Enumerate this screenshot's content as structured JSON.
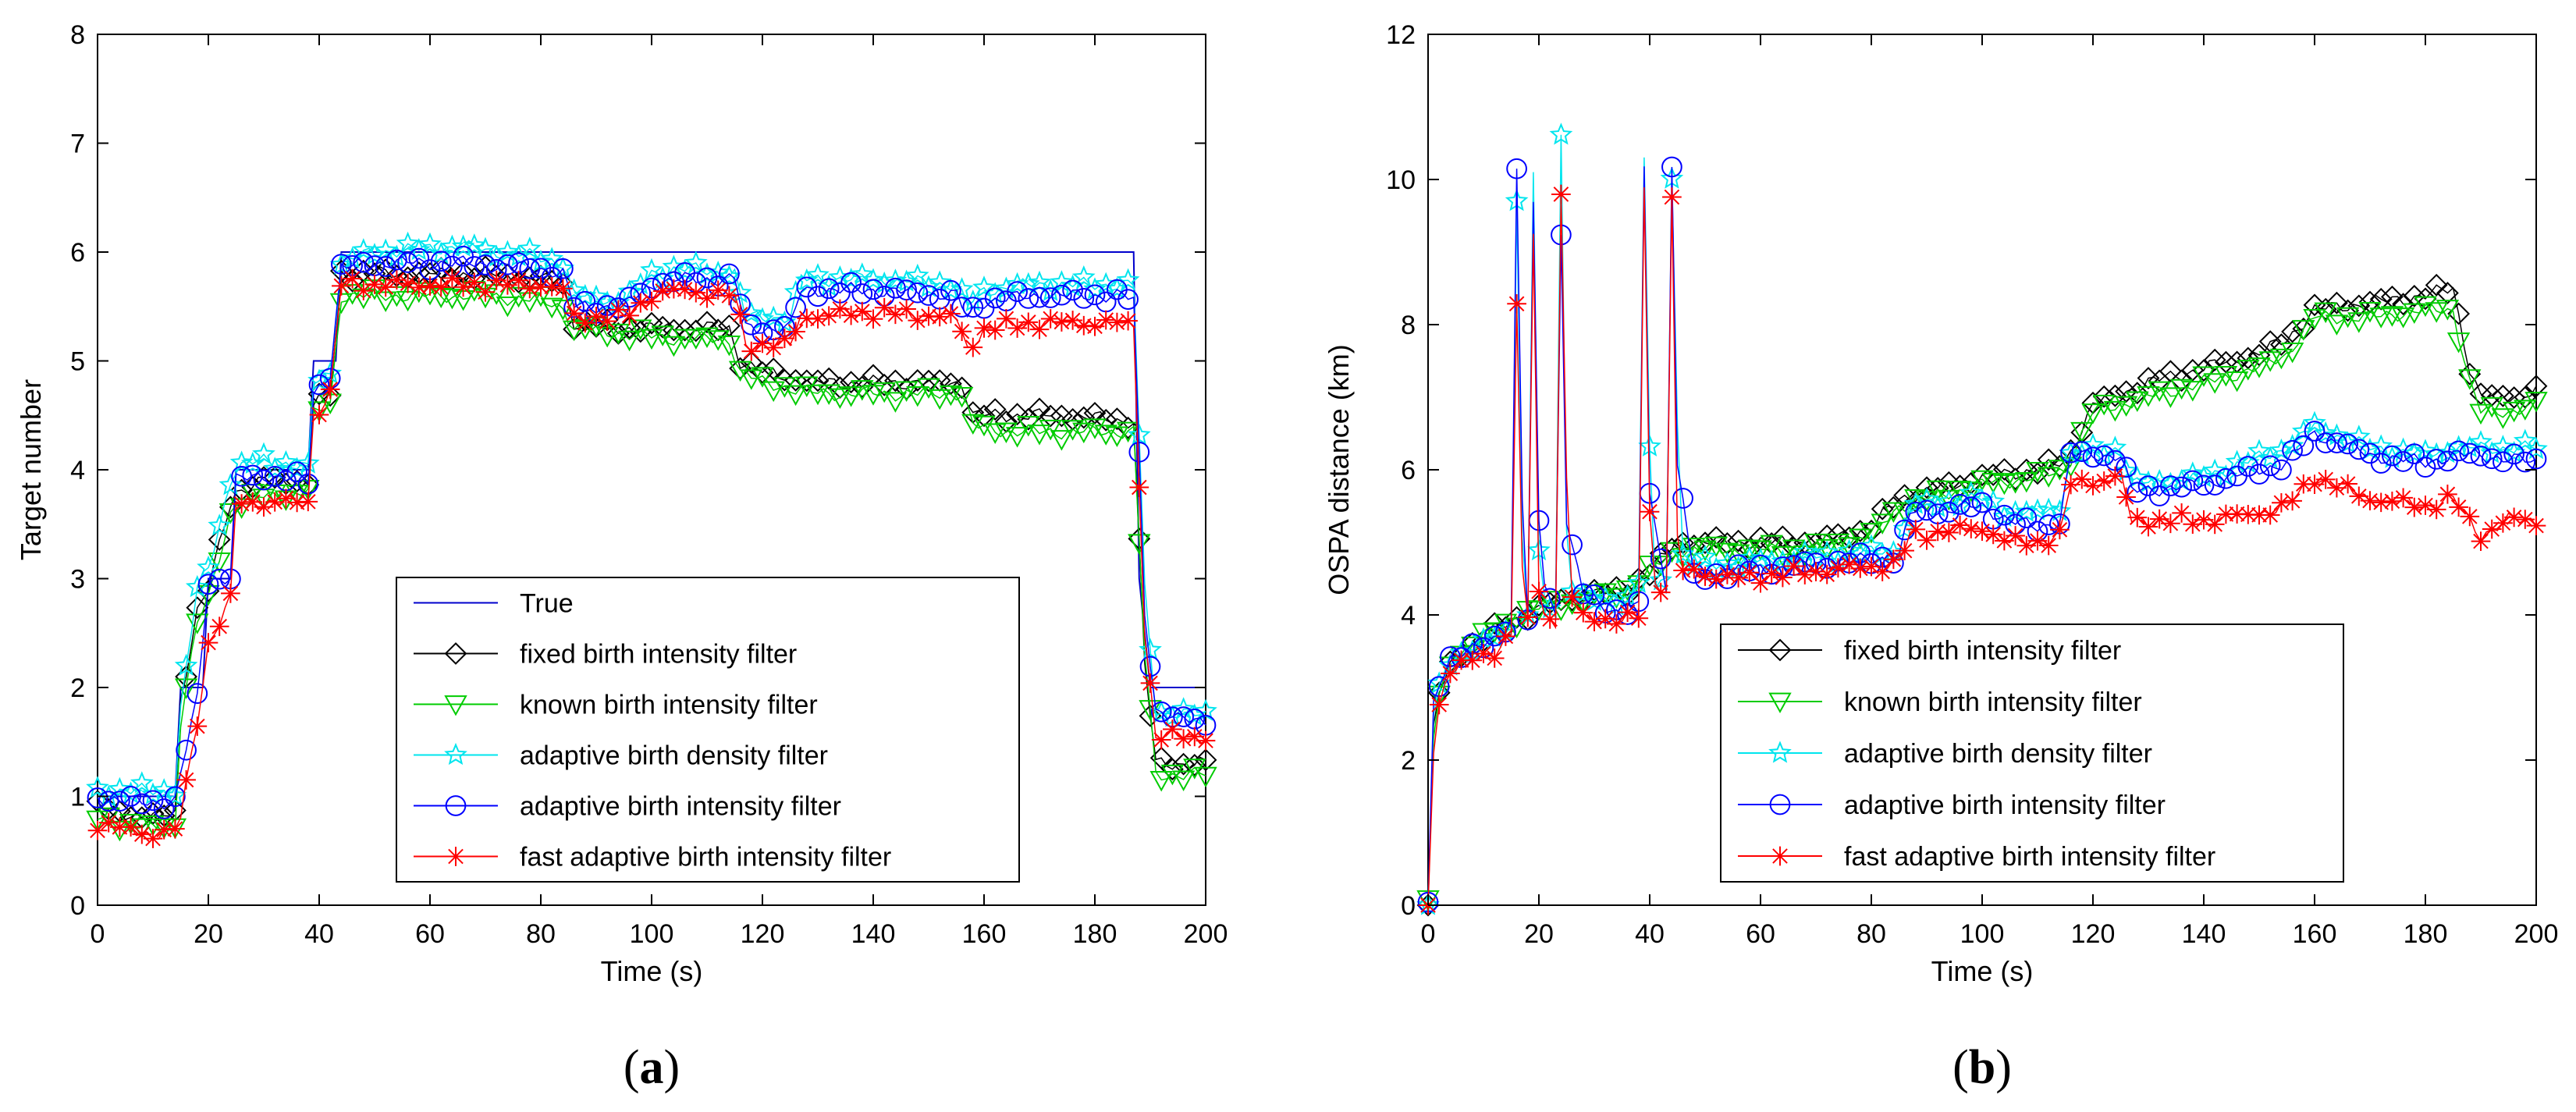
{
  "figures": [
    {
      "caption_letter": "a",
      "caption_open": "(",
      "caption_close": ")"
    },
    {
      "caption_letter": "b",
      "caption_open": "(",
      "caption_close": ")"
    }
  ],
  "chart_data": [
    {
      "id": "a",
      "type": "line",
      "title": "",
      "xlabel": "Time (s)",
      "ylabel": "Target number",
      "xlim": [
        0,
        200
      ],
      "ylim": [
        0,
        8
      ],
      "xticks": [
        0,
        20,
        40,
        60,
        80,
        100,
        120,
        140,
        160,
        180,
        200
      ],
      "yticks": [
        0,
        1,
        2,
        3,
        4,
        5,
        6,
        7,
        8
      ],
      "grid": false,
      "legend_position": "center-lower",
      "series": [
        {
          "name": "True",
          "color": "#0000cc",
          "marker": "none",
          "x": [
            0,
            14,
            15,
            19,
            20,
            24,
            25,
            38,
            39,
            43,
            44,
            187,
            188,
            190,
            200
          ],
          "y": [
            1,
            1,
            2,
            2,
            3,
            3,
            4,
            4,
            5,
            5,
            6,
            6,
            3,
            2,
            2
          ]
        },
        {
          "name": "fixed birth intensity filter",
          "color": "#000000",
          "marker": "diamond",
          "x": [
            0,
            5,
            10,
            14,
            15,
            18,
            20,
            24,
            25,
            30,
            38,
            39,
            42,
            44,
            50,
            60,
            70,
            80,
            84,
            86,
            95,
            105,
            110,
            114,
            116,
            120,
            125,
            130,
            140,
            150,
            156,
            158,
            165,
            175,
            185,
            187,
            189,
            191,
            195,
            200
          ],
          "y": [
            0.9,
            0.85,
            0.8,
            0.85,
            1.9,
            2.7,
            2.9,
            3.7,
            3.8,
            3.9,
            3.9,
            4.6,
            4.7,
            5.8,
            5.8,
            5.8,
            5.8,
            5.75,
            5.7,
            5.35,
            5.3,
            5.3,
            5.3,
            5.3,
            5.0,
            4.9,
            4.85,
            4.8,
            4.8,
            4.8,
            4.8,
            4.5,
            4.5,
            4.5,
            4.45,
            4.45,
            2.2,
            1.3,
            1.3,
            1.3
          ]
        },
        {
          "name": "known birth intensity filter",
          "color": "#00cc00",
          "marker": "triangle-down",
          "x": [
            0,
            5,
            10,
            14,
            15,
            18,
            20,
            24,
            25,
            30,
            38,
            39,
            42,
            44,
            50,
            60,
            70,
            80,
            84,
            86,
            95,
            105,
            110,
            114,
            116,
            120,
            125,
            130,
            140,
            150,
            156,
            158,
            165,
            175,
            185,
            187,
            189,
            191,
            195,
            200
          ],
          "y": [
            0.8,
            0.75,
            0.7,
            0.75,
            1.7,
            2.6,
            2.8,
            3.6,
            3.7,
            3.75,
            3.8,
            4.5,
            4.6,
            5.6,
            5.6,
            5.6,
            5.6,
            5.55,
            5.5,
            5.3,
            5.25,
            5.2,
            5.2,
            5.2,
            4.9,
            4.8,
            4.75,
            4.7,
            4.7,
            4.7,
            4.7,
            4.4,
            4.35,
            4.35,
            4.35,
            4.35,
            2.3,
            1.2,
            1.2,
            1.2
          ]
        },
        {
          "name": "adaptive birth density filter",
          "color": "#00e5ee",
          "marker": "star",
          "x": [
            0,
            5,
            10,
            14,
            15,
            18,
            20,
            24,
            25,
            30,
            38,
            39,
            42,
            44,
            50,
            65,
            80,
            84,
            86,
            95,
            100,
            105,
            115,
            117,
            125,
            127,
            140,
            155,
            157,
            160,
            170,
            185,
            187,
            189,
            191,
            195,
            200
          ],
          "y": [
            1.05,
            1.05,
            1.05,
            1.05,
            1.8,
            2.9,
            3.1,
            3.9,
            4.0,
            4.1,
            4.0,
            4.8,
            4.9,
            5.9,
            6.0,
            6.05,
            5.95,
            5.9,
            5.6,
            5.55,
            5.8,
            5.85,
            5.8,
            5.4,
            5.4,
            5.75,
            5.75,
            5.7,
            5.5,
            5.65,
            5.7,
            5.7,
            5.7,
            2.9,
            1.8,
            1.75,
            1.75
          ]
        },
        {
          "name": "adaptive birth intensity filter",
          "color": "#0000ff",
          "marker": "circle",
          "x": [
            0,
            5,
            10,
            14,
            15,
            18,
            20,
            24,
            25,
            30,
            38,
            39,
            42,
            44,
            50,
            65,
            80,
            84,
            86,
            95,
            100,
            105,
            115,
            117,
            125,
            127,
            140,
            155,
            157,
            160,
            170,
            185,
            187,
            189,
            191,
            195,
            200
          ],
          "y": [
            1.0,
            0.95,
            0.95,
            0.95,
            1.2,
            1.9,
            3.0,
            3.0,
            3.9,
            3.95,
            3.9,
            4.7,
            4.9,
            5.85,
            5.9,
            5.9,
            5.85,
            5.8,
            5.5,
            5.5,
            5.7,
            5.75,
            5.75,
            5.3,
            5.3,
            5.65,
            5.65,
            5.6,
            5.4,
            5.55,
            5.6,
            5.6,
            5.55,
            2.7,
            1.8,
            1.7,
            1.7
          ]
        },
        {
          "name": "fast adaptive birth intensity filter",
          "color": "#ff0000",
          "marker": "asterisk",
          "x": [
            0,
            5,
            10,
            14,
            15,
            18,
            20,
            24,
            25,
            30,
            38,
            39,
            42,
            44,
            50,
            65,
            80,
            84,
            86,
            95,
            100,
            105,
            115,
            117,
            125,
            127,
            140,
            155,
            157,
            160,
            170,
            185,
            187,
            189,
            191,
            195,
            200
          ],
          "y": [
            0.75,
            0.7,
            0.65,
            0.7,
            0.8,
            1.7,
            2.4,
            2.8,
            3.7,
            3.7,
            3.7,
            4.5,
            4.7,
            5.7,
            5.7,
            5.7,
            5.7,
            5.65,
            5.4,
            5.4,
            5.6,
            5.65,
            5.6,
            5.15,
            5.15,
            5.4,
            5.45,
            5.4,
            5.1,
            5.3,
            5.35,
            5.35,
            5.3,
            2.5,
            1.55,
            1.55,
            1.55
          ]
        }
      ]
    },
    {
      "id": "b",
      "type": "line",
      "title": "",
      "xlabel": "Time (s)",
      "ylabel": "OSPA distance (km)",
      "xlim": [
        0,
        200
      ],
      "ylim": [
        0,
        12
      ],
      "xticks": [
        0,
        20,
        40,
        60,
        80,
        100,
        120,
        140,
        160,
        180,
        200
      ],
      "yticks": [
        0,
        2,
        4,
        6,
        8,
        10,
        12
      ],
      "grid": false,
      "legend_position": "lower-right",
      "series": [
        {
          "name": "fixed birth intensity filter",
          "color": "#000000",
          "marker": "diamond",
          "x": [
            0,
            1,
            2,
            4,
            6,
            10,
            15,
            20,
            25,
            30,
            35,
            40,
            45,
            50,
            60,
            70,
            80,
            85,
            90,
            100,
            110,
            115,
            120,
            130,
            140,
            150,
            155,
            160,
            170,
            180,
            185,
            188,
            190,
            195,
            200
          ],
          "y": [
            0,
            2.4,
            2.9,
            3.3,
            3.5,
            3.7,
            3.9,
            4.1,
            4.2,
            4.3,
            4.3,
            4.6,
            5.0,
            5.0,
            5.0,
            5.0,
            5.2,
            5.6,
            5.7,
            5.9,
            6.0,
            6.1,
            6.9,
            7.2,
            7.4,
            7.6,
            7.8,
            8.2,
            8.3,
            8.4,
            8.5,
            7.4,
            7.0,
            7.0,
            7.1
          ]
        },
        {
          "name": "known birth intensity filter",
          "color": "#00cc00",
          "marker": "triangle-down",
          "x": [
            0,
            1,
            2,
            4,
            6,
            10,
            15,
            20,
            25,
            30,
            35,
            40,
            45,
            50,
            60,
            70,
            80,
            85,
            90,
            100,
            110,
            115,
            120,
            130,
            140,
            150,
            155,
            160,
            170,
            180,
            185,
            188,
            190,
            195,
            200
          ],
          "y": [
            0,
            2.3,
            2.9,
            3.3,
            3.5,
            3.7,
            3.9,
            4.1,
            4.15,
            4.25,
            4.3,
            4.6,
            4.9,
            4.9,
            4.9,
            4.9,
            5.1,
            5.5,
            5.6,
            5.8,
            5.9,
            6.0,
            6.8,
            7.0,
            7.2,
            7.4,
            7.6,
            8.1,
            8.1,
            8.2,
            8.2,
            7.2,
            6.8,
            6.8,
            6.9
          ]
        },
        {
          "name": "adaptive birth density filter",
          "color": "#00e5ee",
          "marker": "star",
          "x": [
            0,
            1,
            2,
            4,
            8,
            12,
            15,
            16,
            17,
            18,
            19,
            20,
            21,
            23,
            24,
            25,
            26,
            28,
            35,
            38,
            39,
            40,
            41,
            43,
            44,
            45,
            46,
            48,
            55,
            70,
            85,
            87,
            100,
            105,
            110,
            114,
            116,
            125,
            127,
            140,
            155,
            160,
            170,
            180,
            185,
            190,
            200
          ],
          "y": [
            0,
            2.6,
            3.0,
            3.4,
            3.5,
            3.7,
            3.9,
            9.7,
            5.0,
            4.0,
            10.1,
            4.8,
            4.2,
            4.1,
            10.6,
            5.2,
            4.4,
            4.2,
            4.2,
            4.4,
            10.2,
            6.3,
            4.4,
            4.5,
            10.1,
            6.7,
            4.8,
            4.7,
            4.7,
            4.8,
            4.9,
            5.5,
            5.6,
            5.4,
            5.4,
            5.5,
            6.2,
            6.3,
            5.8,
            5.9,
            6.3,
            6.6,
            6.3,
            6.2,
            6.3,
            6.3,
            6.3
          ]
        },
        {
          "name": "adaptive birth intensity filter",
          "color": "#0000ff",
          "marker": "circle",
          "x": [
            0,
            1,
            2,
            4,
            8,
            12,
            15,
            16,
            17,
            18,
            19,
            20,
            21,
            23,
            24,
            25,
            26,
            28,
            35,
            38,
            39,
            40,
            41,
            43,
            44,
            45,
            46,
            48,
            55,
            70,
            85,
            87,
            100,
            105,
            110,
            114,
            116,
            125,
            127,
            140,
            155,
            160,
            170,
            180,
            185,
            190,
            200
          ],
          "y": [
            0,
            2.8,
            3.1,
            3.4,
            3.5,
            3.7,
            3.9,
            10.1,
            5.6,
            3.9,
            9.6,
            5.3,
            4.5,
            4.0,
            9.3,
            5.3,
            4.9,
            4.3,
            4.0,
            4.1,
            10.2,
            5.7,
            5.2,
            4.4,
            10.2,
            6.0,
            5.6,
            4.5,
            4.6,
            4.7,
            4.8,
            5.4,
            5.5,
            5.3,
            5.2,
            5.3,
            6.2,
            6.2,
            5.7,
            5.8,
            6.1,
            6.5,
            6.2,
            6.1,
            6.2,
            6.2,
            6.1
          ]
        },
        {
          "name": "fast adaptive birth intensity filter",
          "color": "#ff0000",
          "marker": "asterisk",
          "x": [
            0,
            1,
            2,
            4,
            8,
            12,
            15,
            16,
            17,
            18,
            19,
            20,
            21,
            23,
            24,
            25,
            26,
            28,
            35,
            38,
            39,
            40,
            41,
            43,
            44,
            45,
            46,
            48,
            55,
            70,
            85,
            87,
            100,
            105,
            110,
            114,
            116,
            125,
            127,
            140,
            150,
            155,
            160,
            170,
            180,
            185,
            190,
            195,
            200
          ],
          "y": [
            0,
            2.2,
            2.8,
            3.2,
            3.4,
            3.5,
            3.7,
            8.3,
            4.6,
            3.9,
            9.3,
            4.4,
            4.0,
            3.9,
            9.8,
            5.8,
            4.2,
            4.0,
            3.9,
            4.0,
            9.9,
            5.4,
            4.5,
            4.3,
            9.7,
            5.1,
            4.6,
            4.6,
            4.5,
            4.6,
            4.7,
            5.1,
            5.2,
            5.0,
            5.0,
            5.1,
            5.8,
            5.9,
            5.3,
            5.3,
            5.4,
            5.5,
            5.9,
            5.6,
            5.5,
            5.6,
            5.1,
            5.3,
            5.3
          ]
        }
      ]
    }
  ]
}
